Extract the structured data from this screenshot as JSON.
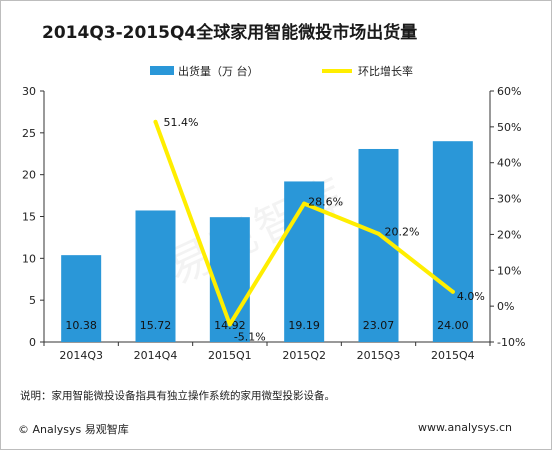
{
  "title": "2014Q3-2015Q4全球家用智能微投市场出货量",
  "note": "说明：家用智能微投设备指具有独立操作系统的家用微型投影设备。",
  "footer": {
    "left": "© Analysys 易观智库",
    "right": "www.analysys.cn"
  },
  "watermark": "易观智库",
  "chart_data": {
    "type": "bar",
    "categories": [
      "2014Q3",
      "2014Q4",
      "2015Q1",
      "2015Q2",
      "2015Q3",
      "2015Q4"
    ],
    "series": [
      {
        "name": "出货量（万 台）",
        "type": "bar",
        "axis": "left",
        "values": [
          10.38,
          15.72,
          14.92,
          19.19,
          23.07,
          24.0
        ],
        "labels": [
          "10.38",
          "15.72",
          "14.92",
          "19.19",
          "23.07",
          "24.00"
        ],
        "color": "#2a97d8"
      },
      {
        "name": "环比增长率",
        "type": "line",
        "axis": "right",
        "values": [
          null,
          51.4,
          -5.1,
          28.6,
          20.2,
          4.0
        ],
        "labels": [
          "",
          "51.4%",
          "-5.1%",
          "28.6%",
          "20.2%",
          "4.0%"
        ],
        "color": "#ffee00"
      }
    ],
    "left_axis": {
      "min": 0,
      "max": 30,
      "ticks": [
        "0",
        "5",
        "10",
        "15",
        "20",
        "25",
        "30"
      ]
    },
    "right_axis": {
      "min": -10,
      "max": 60,
      "ticks": [
        "-10%",
        "0%",
        "10%",
        "20%",
        "30%",
        "40%",
        "50%",
        "60%"
      ]
    },
    "legend": "top",
    "grid": false
  }
}
